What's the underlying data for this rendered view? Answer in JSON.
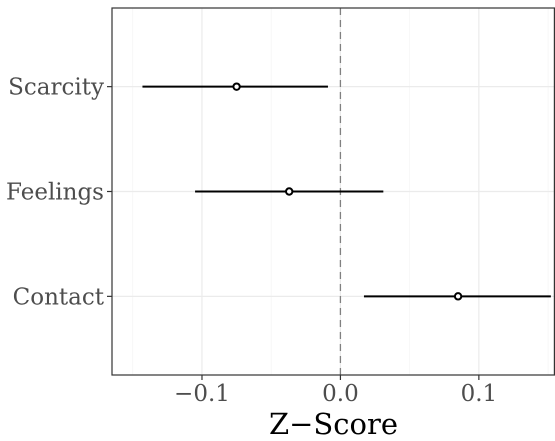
{
  "chart_data": {
    "type": "scatter",
    "subtype": "forest-plot",
    "title": "",
    "xlabel": "Z−Score",
    "ylabel": "",
    "xlim": [
      -0.165,
      0.155
    ],
    "x_ticks": [
      -0.1,
      0.0,
      0.1
    ],
    "x_tick_labels": [
      "−0.1",
      "0.0",
      "0.1"
    ],
    "categories": [
      "Scarcity",
      "Feelings",
      "Contact"
    ],
    "points": [
      {
        "label": "Scarcity",
        "estimate": -0.075,
        "lower": -0.143,
        "upper": -0.009
      },
      {
        "label": "Feelings",
        "estimate": -0.037,
        "lower": -0.105,
        "upper": 0.031
      },
      {
        "label": "Contact",
        "estimate": 0.085,
        "lower": 0.017,
        "upper": 0.152
      }
    ],
    "reference_line": 0.0,
    "grid": true,
    "legend": "none",
    "colors": {
      "panel_border": "#333333",
      "grid_major": "#ebebeb",
      "grid_minor": "#f5f5f5",
      "reference_line": "#808080",
      "marks": "#000000",
      "tick_text": "#4d4d4d",
      "axis_title": "#000000"
    }
  }
}
